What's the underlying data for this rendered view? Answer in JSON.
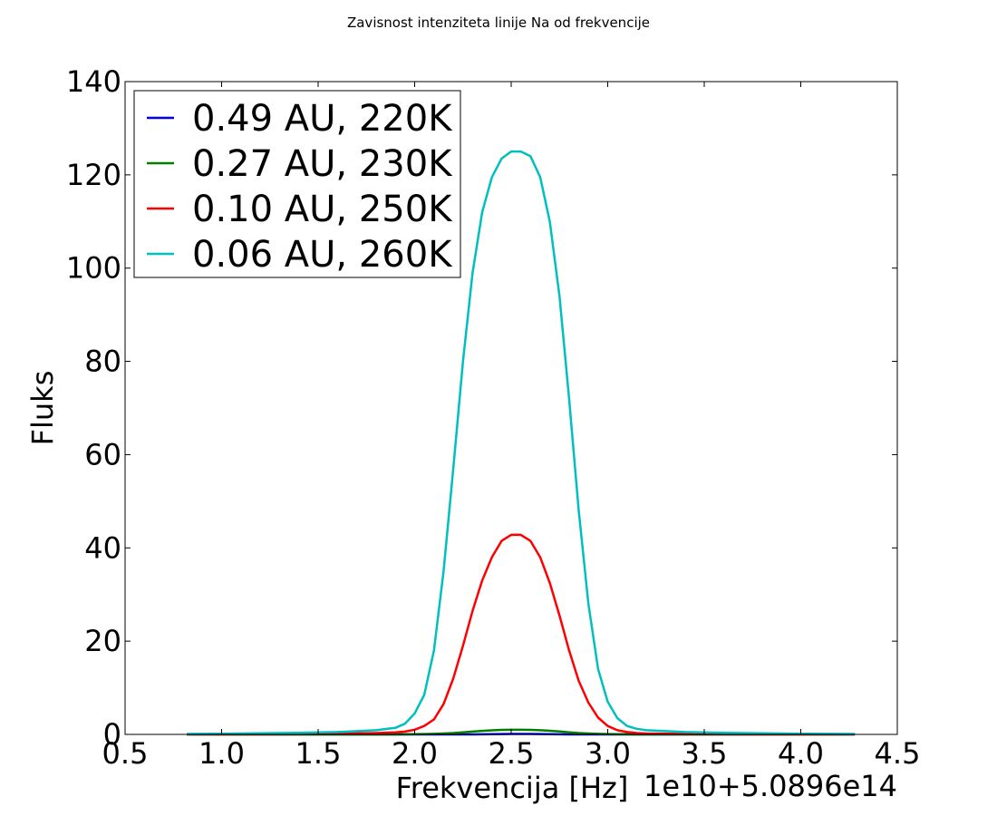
{
  "chart_data": {
    "type": "line",
    "title": "Zavisnost intenziteta linije Na od frekvencije",
    "xlabel": "Frekvencija [Hz]",
    "ylabel": "Fluks",
    "x_offset_label": "1e10+5.0896e14",
    "xlim": [
      0.5,
      4.5
    ],
    "ylim": [
      0,
      140
    ],
    "xticks": [
      0.5,
      1.0,
      1.5,
      2.0,
      2.5,
      3.0,
      3.5,
      4.0,
      4.5
    ],
    "xtick_labels": [
      "0.5",
      "1.0",
      "1.5",
      "2.0",
      "2.5",
      "3.0",
      "3.5",
      "4.0",
      "4.5"
    ],
    "yticks": [
      0,
      20,
      40,
      60,
      80,
      100,
      120,
      140
    ],
    "ytick_labels": [
      "0",
      "20",
      "40",
      "60",
      "80",
      "100",
      "120",
      "140"
    ],
    "grid": false,
    "legend_position": "upper-left",
    "x": [
      0.82,
      1.0,
      1.2,
      1.4,
      1.6,
      1.8,
      1.9,
      1.95,
      2.0,
      2.05,
      2.1,
      2.15,
      2.2,
      2.25,
      2.3,
      2.35,
      2.4,
      2.45,
      2.5,
      2.55,
      2.6,
      2.65,
      2.7,
      2.75,
      2.8,
      2.85,
      2.9,
      2.95,
      3.0,
      3.05,
      3.1,
      3.15,
      3.2,
      3.4,
      3.6,
      3.8,
      4.0,
      4.28
    ],
    "series": [
      {
        "name": "0.49 AU, 220K",
        "color": "#0000ff",
        "values": [
          0,
          0,
          0,
          0,
          0,
          0,
          0,
          0,
          0,
          0,
          0,
          0,
          0,
          0,
          0,
          0.02,
          0.05,
          0.08,
          0.1,
          0.1,
          0.1,
          0.08,
          0.05,
          0.02,
          0,
          0,
          0,
          0,
          0,
          0,
          0,
          0,
          0,
          0,
          0,
          0,
          0,
          0
        ]
      },
      {
        "name": "0.27 AU, 230K",
        "color": "#008000",
        "values": [
          0,
          0,
          0,
          0,
          0,
          0,
          0,
          0.02,
          0.05,
          0.08,
          0.12,
          0.2,
          0.3,
          0.45,
          0.6,
          0.75,
          0.88,
          0.97,
          1.0,
          1.0,
          0.98,
          0.9,
          0.78,
          0.62,
          0.45,
          0.3,
          0.2,
          0.12,
          0.08,
          0.05,
          0.02,
          0,
          0,
          0,
          0,
          0,
          0,
          0
        ]
      },
      {
        "name": "0.10 AU, 250K",
        "color": "#ff0000",
        "values": [
          0.05,
          0.06,
          0.08,
          0.1,
          0.15,
          0.3,
          0.45,
          0.6,
          1.0,
          1.8,
          3.2,
          6.5,
          12.0,
          19.0,
          26.5,
          33.0,
          38.0,
          41.5,
          42.8,
          42.8,
          41.5,
          38.0,
          32.5,
          25.5,
          18.0,
          11.5,
          6.8,
          3.6,
          1.8,
          0.9,
          0.5,
          0.3,
          0.2,
          0.1,
          0.08,
          0.06,
          0.05,
          0.04
        ]
      },
      {
        "name": "0.06 AU, 260K",
        "color": "#00bfbf",
        "values": [
          0.1,
          0.15,
          0.25,
          0.35,
          0.5,
          0.9,
          1.4,
          2.3,
          4.5,
          8.5,
          18.0,
          35.0,
          57.0,
          80.0,
          99.0,
          112.0,
          119.5,
          123.5,
          125.0,
          125.0,
          124.0,
          119.5,
          110.0,
          94.0,
          72.0,
          48.0,
          28.0,
          14.0,
          7.0,
          3.5,
          1.8,
          1.2,
          0.9,
          0.5,
          0.35,
          0.25,
          0.15,
          0.1
        ]
      }
    ]
  }
}
